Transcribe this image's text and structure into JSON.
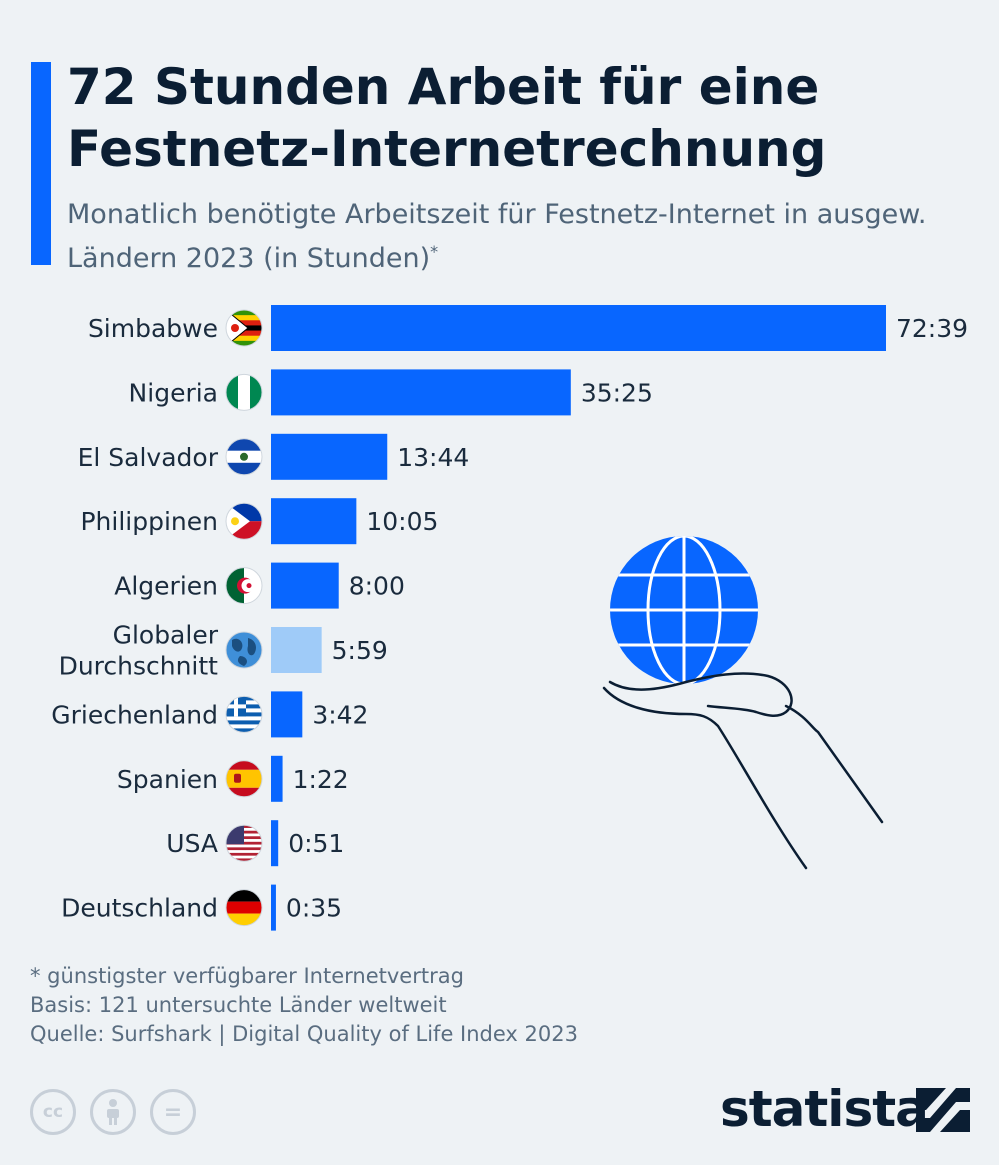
{
  "header": {
    "title": "72 Stunden Arbeit für eine Festnetz-Internetrechnung",
    "subtitle": "Monatlich benötigte Arbeitszeit für Festnetz-Internet in ausgew. Ländern 2023 (in Stunden)",
    "subtitle_mark": "*"
  },
  "colors": {
    "accent": "#0866ff",
    "bar": "#0866ff",
    "bar_highlight": "#9fcbf8",
    "text": "#0b1e33"
  },
  "chart_data": {
    "type": "bar",
    "orientation": "horizontal",
    "title": "72 Stunden Arbeit für eine Festnetz-Internetrechnung",
    "xlabel": "",
    "ylabel": "",
    "unit": "Stunden (h:mm)",
    "xlim": [
      0,
      72.65
    ],
    "categories": [
      "Simbabwe",
      "Nigeria",
      "El Salvador",
      "Philippinen",
      "Algerien",
      "Globaler Durchschnitt",
      "Griechenland",
      "Spanien",
      "USA",
      "Deutschland"
    ],
    "category_lines": [
      [
        "Simbabwe"
      ],
      [
        "Nigeria"
      ],
      [
        "El Salvador"
      ],
      [
        "Philippinen"
      ],
      [
        "Algerien"
      ],
      [
        "Globaler",
        "Durchschnitt"
      ],
      [
        "Griechenland"
      ],
      [
        "Spanien"
      ],
      [
        "USA"
      ],
      [
        "Deutschland"
      ]
    ],
    "flags": [
      "zimbabwe-flag",
      "nigeria-flag",
      "el-salvador-flag",
      "philippines-flag",
      "algeria-flag",
      "globe-icon",
      "greece-flag",
      "spain-flag",
      "usa-flag",
      "germany-flag"
    ],
    "values": [
      72.65,
      35.417,
      13.733,
      10.083,
      8.0,
      5.983,
      3.7,
      1.367,
      0.85,
      0.583
    ],
    "value_labels": [
      "72:39",
      "35:25",
      "13:44",
      "10:05",
      "8:00",
      "5:59",
      "3:42",
      "1:22",
      "0:51",
      "0:35"
    ],
    "highlight_index": 5
  },
  "footer": {
    "note": "* günstigster verfügbarer Internetvertrag",
    "basis": "Basis: 121 untersuchte Länder weltweit",
    "source": "Quelle: Surfshark | Digital Quality of Life Index 2023",
    "license_icons": [
      "cc-icon",
      "by-icon",
      "nd-icon"
    ],
    "cc_label": "cc",
    "nd_label": "=",
    "brand": "statista"
  }
}
